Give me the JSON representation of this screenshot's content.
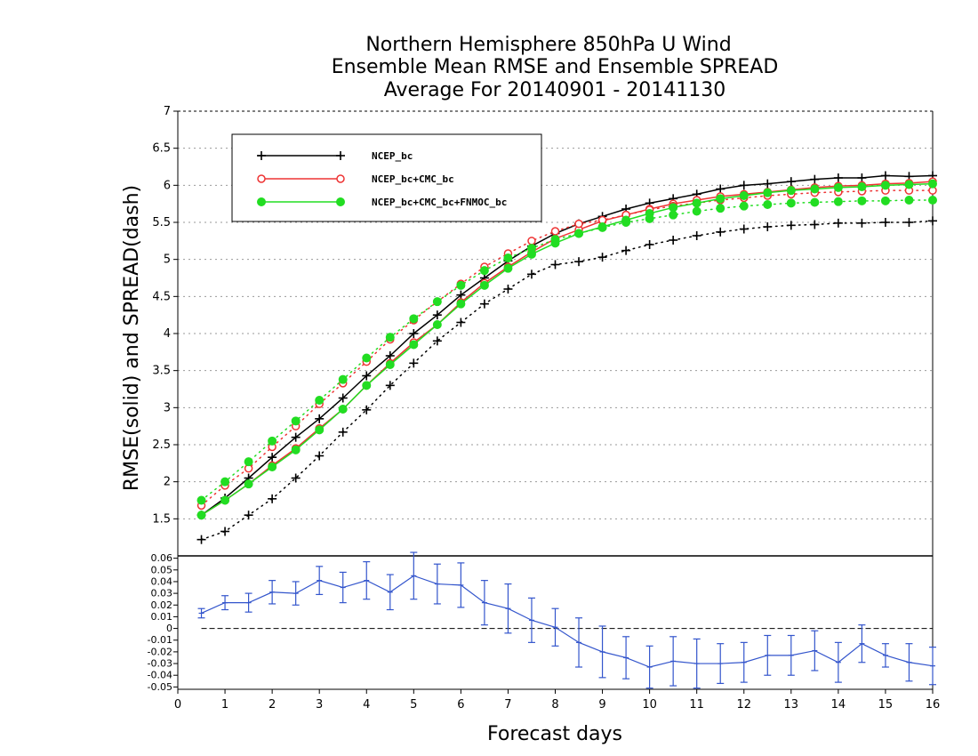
{
  "chart_data": [
    {
      "type": "line",
      "title": [
        "Northern Hemisphere 850hPa U Wind",
        "Ensemble Mean RMSE and Ensemble SPREAD",
        "Average For 20140901 - 20141130"
      ],
      "xlabel": "Forecast days",
      "ylabel": "RMSE(solid) and SPREAD(dash)",
      "xlim": [
        0,
        16
      ],
      "ylim": [
        1,
        7
      ],
      "xticks": [
        "0",
        "1",
        "2",
        "3",
        "4",
        "5",
        "6",
        "7",
        "8",
        "9",
        "10",
        "11",
        "12",
        "13",
        "14",
        "15",
        "16"
      ],
      "yticks": [
        "1.5",
        "2",
        "2.5",
        "3",
        "3.5",
        "4",
        "4.5",
        "5",
        "5.5",
        "6",
        "6.5",
        "7"
      ],
      "grid": true,
      "legend_position": "top-left",
      "x": [
        0.5,
        1,
        1.5,
        2,
        2.5,
        3,
        3.5,
        4,
        4.5,
        5,
        5.5,
        6,
        6.5,
        7,
        7.5,
        8,
        8.5,
        9,
        9.5,
        10,
        10.5,
        11,
        11.5,
        12,
        12.5,
        13,
        13.5,
        14,
        14.5,
        15,
        15.5,
        16
      ],
      "series": [
        {
          "name": "NCEP_bc",
          "color": "#000000",
          "marker": "plus",
          "rmse": [
            1.55,
            1.78,
            2.05,
            2.33,
            2.6,
            2.85,
            3.13,
            3.43,
            3.7,
            4.0,
            4.25,
            4.52,
            4.75,
            4.98,
            5.18,
            5.35,
            5.48,
            5.58,
            5.68,
            5.76,
            5.82,
            5.88,
            5.95,
            6.0,
            6.02,
            6.05,
            6.08,
            6.1,
            6.1,
            6.13,
            6.12,
            6.13
          ],
          "spread": [
            1.22,
            1.33,
            1.55,
            1.77,
            2.05,
            2.35,
            2.67,
            2.97,
            3.3,
            3.6,
            3.9,
            4.15,
            4.4,
            4.6,
            4.8,
            4.93,
            4.97,
            5.03,
            5.12,
            5.2,
            5.26,
            5.32,
            5.37,
            5.41,
            5.44,
            5.46,
            5.47,
            5.49,
            5.49,
            5.5,
            5.5,
            5.52
          ]
        },
        {
          "name": "NCEP_bc+CMC_bc",
          "color": "#ee3333",
          "marker": "open-circle",
          "rmse": [
            1.55,
            1.75,
            1.97,
            2.22,
            2.45,
            2.72,
            2.98,
            3.3,
            3.6,
            3.88,
            4.12,
            4.42,
            4.68,
            4.9,
            5.1,
            5.28,
            5.4,
            5.52,
            5.6,
            5.68,
            5.75,
            5.8,
            5.85,
            5.88,
            5.91,
            5.94,
            5.97,
            5.99,
            6.0,
            6.02,
            6.03,
            6.05
          ],
          "spread": [
            1.68,
            1.95,
            2.18,
            2.47,
            2.75,
            3.05,
            3.33,
            3.62,
            3.92,
            4.18,
            4.43,
            4.67,
            4.9,
            5.08,
            5.25,
            5.38,
            5.48,
            5.53,
            5.6,
            5.67,
            5.72,
            5.76,
            5.8,
            5.83,
            5.86,
            5.88,
            5.9,
            5.91,
            5.92,
            5.93,
            5.93,
            5.93
          ]
        },
        {
          "name": "NCEP_bc+CMC_bc+FNMOC_bc",
          "color": "#22dd22",
          "marker": "filled-circle",
          "rmse": [
            1.55,
            1.75,
            1.97,
            2.2,
            2.43,
            2.7,
            2.98,
            3.3,
            3.58,
            3.85,
            4.12,
            4.4,
            4.65,
            4.88,
            5.07,
            5.22,
            5.35,
            5.44,
            5.53,
            5.62,
            5.7,
            5.76,
            5.82,
            5.86,
            5.9,
            5.93,
            5.95,
            5.97,
            5.98,
            6.0,
            6.01,
            6.02
          ],
          "spread": [
            1.75,
            2.0,
            2.27,
            2.55,
            2.82,
            3.1,
            3.38,
            3.67,
            3.95,
            4.2,
            4.43,
            4.65,
            4.85,
            5.02,
            5.15,
            5.27,
            5.35,
            5.43,
            5.5,
            5.55,
            5.6,
            5.65,
            5.69,
            5.72,
            5.74,
            5.76,
            5.77,
            5.78,
            5.79,
            5.79,
            5.8,
            5.8
          ]
        }
      ]
    },
    {
      "type": "line",
      "title": "",
      "xlabel": "Forecast days",
      "ylabel": "",
      "xlim": [
        0,
        16
      ],
      "ylim": [
        -0.052,
        0.062
      ],
      "yticks": [
        "-0.05",
        "-0.04",
        "-0.03",
        "-0.02",
        "-0.01",
        "0",
        "0.01",
        "0.02",
        "0.03",
        "0.04",
        "0.05",
        "0.06"
      ],
      "color": "#3355cc",
      "zero_line": true,
      "error_bars": true,
      "x": [
        0.5,
        1,
        1.5,
        2,
        2.5,
        3,
        3.5,
        4,
        4.5,
        5,
        5.5,
        6,
        6.5,
        7,
        7.5,
        8,
        8.5,
        9,
        9.5,
        10,
        10.5,
        11,
        11.5,
        12,
        12.5,
        13,
        13.5,
        14,
        14.5,
        15,
        15.5,
        16
      ],
      "values": [
        0.013,
        0.022,
        0.022,
        0.031,
        0.03,
        0.041,
        0.035,
        0.041,
        0.031,
        0.045,
        0.038,
        0.037,
        0.022,
        0.017,
        0.007,
        0.001,
        -0.012,
        -0.02,
        -0.025,
        -0.033,
        -0.028,
        -0.03,
        -0.03,
        -0.029,
        -0.023,
        -0.023,
        -0.019,
        -0.029,
        -0.013,
        -0.023,
        -0.029,
        -0.032
      ],
      "errors": [
        0.004,
        0.006,
        0.008,
        0.01,
        0.01,
        0.012,
        0.013,
        0.016,
        0.015,
        0.02,
        0.017,
        0.019,
        0.019,
        0.021,
        0.019,
        0.016,
        0.021,
        0.022,
        0.018,
        0.018,
        0.021,
        0.021,
        0.017,
        0.017,
        0.017,
        0.017,
        0.017,
        0.017,
        0.016,
        0.01,
        0.016,
        0.016
      ]
    }
  ]
}
